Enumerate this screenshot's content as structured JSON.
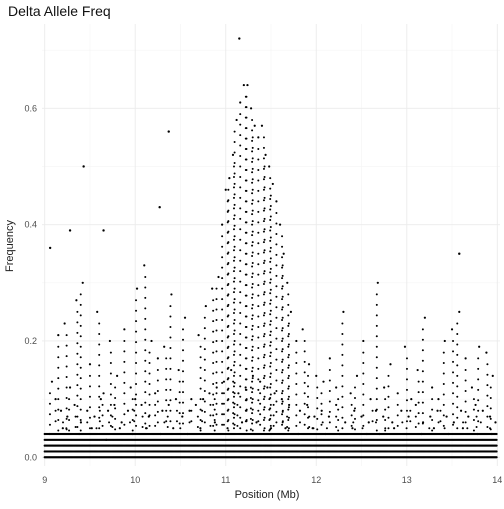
{
  "chart_data": {
    "type": "scatter",
    "title": "Delta Allele Freq",
    "xlabel": "Position (Mb)",
    "ylabel": "Frequency",
    "xlim": [
      8.97,
      14.03
    ],
    "ylim": [
      -0.015,
      0.745
    ],
    "x_ticks": [
      9,
      10,
      11,
      12,
      13,
      14
    ],
    "x_tick_labels": [
      "9",
      "10",
      "11",
      "12",
      "13",
      "14"
    ],
    "y_ticks": [
      0.0,
      0.2,
      0.4,
      0.6
    ],
    "y_tick_labels": [
      "0.0",
      "0.2",
      "0.4",
      "0.6"
    ],
    "grid": true,
    "legend": "none",
    "point_color": "#000000",
    "background": "#ffffff",
    "x": [
      9.08,
      9.15,
      9.22,
      9.28,
      9.35,
      9.42,
      9.5,
      9.58,
      9.65,
      9.72,
      9.8,
      9.88,
      9.95,
      10.02,
      10.1,
      10.18,
      10.25,
      10.32,
      10.4,
      10.48,
      10.55,
      10.62,
      10.7,
      10.78,
      10.85,
      10.92,
      10.96,
      11.0,
      11.04,
      11.08,
      11.12,
      11.16,
      11.2,
      11.24,
      11.28,
      11.32,
      11.36,
      11.4,
      11.44,
      11.48,
      11.52,
      11.56,
      11.6,
      11.64,
      11.68,
      11.72,
      11.78,
      11.85,
      11.92,
      12.0,
      12.08,
      12.15,
      12.22,
      12.3,
      12.38,
      12.45,
      12.52,
      12.6,
      12.68,
      12.75,
      12.82,
      12.9,
      12.98,
      13.05,
      13.12,
      13.2,
      13.28,
      13.35,
      13.42,
      13.5,
      13.58,
      13.65,
      13.72,
      13.8,
      13.88,
      13.95,
      9.12,
      9.18,
      9.25,
      9.33,
      9.4,
      9.47,
      9.55,
      9.62,
      9.7,
      9.77,
      9.85,
      9.92,
      10.0,
      10.07,
      10.15,
      10.22,
      10.3,
      10.37,
      10.45,
      10.52,
      10.6,
      10.67,
      10.75,
      10.82,
      10.9,
      10.98,
      11.06,
      11.14,
      11.22,
      11.3,
      11.38,
      11.46,
      11.54,
      11.62,
      11.7,
      11.82,
      11.9,
      11.98,
      12.06,
      12.14,
      12.22,
      12.32,
      12.42,
      12.5,
      12.58,
      12.66,
      12.74,
      12.84,
      12.94,
      13.02,
      13.1,
      13.18,
      13.26,
      13.34,
      13.44,
      13.52,
      13.6,
      13.68,
      13.76,
      13.84,
      13.92,
      13.98,
      9.05,
      9.2,
      9.38,
      9.52,
      9.68,
      9.83,
      9.97,
      10.12,
      10.28,
      10.42,
      10.58,
      10.72,
      10.88,
      11.02,
      11.18,
      11.34,
      11.5,
      11.66,
      11.8,
      11.96,
      12.1,
      12.26,
      12.4,
      12.56,
      12.7,
      12.86,
      13.0,
      13.16,
      13.3,
      13.46,
      13.62,
      13.78,
      13.94
    ],
    "y": [
      0.13,
      0.21,
      0.23,
      0.12,
      0.27,
      0.3,
      0.16,
      0.25,
      0.11,
      0.2,
      0.14,
      0.22,
      0.12,
      0.29,
      0.33,
      0.2,
      0.17,
      0.19,
      0.28,
      0.15,
      0.24,
      0.1,
      0.21,
      0.26,
      0.29,
      0.31,
      0.4,
      0.46,
      0.48,
      0.52,
      0.58,
      0.61,
      0.64,
      0.64,
      0.6,
      0.57,
      0.55,
      0.57,
      0.52,
      0.5,
      0.47,
      0.44,
      0.4,
      0.35,
      0.3,
      0.25,
      0.2,
      0.22,
      0.16,
      0.14,
      0.13,
      0.17,
      0.12,
      0.25,
      0.11,
      0.14,
      0.2,
      0.1,
      0.3,
      0.12,
      0.16,
      0.11,
      0.19,
      0.1,
      0.15,
      0.24,
      0.12,
      0.1,
      0.2,
      0.22,
      0.25,
      0.17,
      0.12,
      0.19,
      0.18,
      0.14,
      0.1,
      0.08,
      0.07,
      0.09,
      0.06,
      0.08,
      0.07,
      0.1,
      0.08,
      0.09,
      0.06,
      0.08,
      0.1,
      0.09,
      0.07,
      0.11,
      0.08,
      0.09,
      0.1,
      0.07,
      0.08,
      0.09,
      0.1,
      0.11,
      0.12,
      0.13,
      0.15,
      0.11,
      0.12,
      0.14,
      0.13,
      0.12,
      0.11,
      0.1,
      0.09,
      0.08,
      0.09,
      0.07,
      0.08,
      0.07,
      0.09,
      0.06,
      0.08,
      0.07,
      0.06,
      0.08,
      0.07,
      0.06,
      0.08,
      0.07,
      0.09,
      0.06,
      0.07,
      0.08,
      0.07,
      0.06,
      0.08,
      0.07,
      0.09,
      0.08,
      0.07,
      0.06,
      0.04,
      0.05,
      0.04,
      0.05,
      0.03,
      0.05,
      0.04,
      0.05,
      0.04,
      0.05,
      0.04,
      0.05,
      0.06,
      0.05,
      0.06,
      0.06,
      0.05,
      0.05,
      0.04,
      0.05,
      0.04,
      0.04,
      0.05,
      0.04,
      0.04,
      0.05,
      0.04,
      0.04,
      0.05,
      0.04,
      0.05,
      0.04,
      0.04
    ],
    "y_outliers_x": [
      9.43,
      11.15,
      10.37,
      13.58,
      9.28,
      9.65,
      10.27,
      9.06
    ],
    "y_outliers_y": [
      0.5,
      0.72,
      0.56,
      0.35,
      0.39,
      0.39,
      0.43,
      0.36
    ],
    "baseline_bands_y": [
      0.0,
      0.01,
      0.02,
      0.03,
      0.04
    ]
  }
}
